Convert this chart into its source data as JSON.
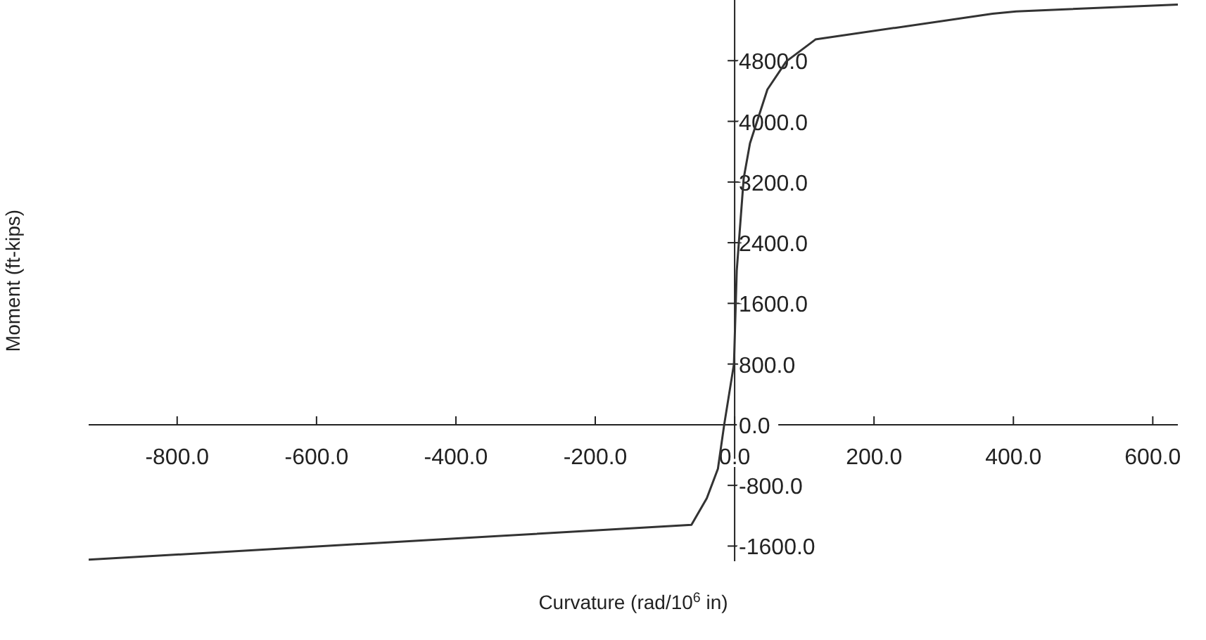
{
  "chart_data": {
    "type": "line",
    "xlabel": "Curvature (rad/10$^{6}$ in)",
    "ylabel": "Moment (ft-kips)",
    "x": [
      -927,
      -62,
      -40,
      -24,
      -15,
      -1,
      3,
      13,
      22,
      47,
      74,
      116,
      370,
      404,
      636
    ],
    "series": [
      {
        "color": "#333333",
        "values": [
          -1780,
          -1320,
          -970,
          -580,
          0,
          800,
          2030,
          3250,
          3710,
          4420,
          4790,
          5080,
          5420,
          5450,
          5540
        ]
      }
    ],
    "xlim": [
      -927,
      636
    ],
    "ylim": [
      -1800,
      5600
    ],
    "xticks": [
      {
        "value": -800,
        "label": "-800.0"
      },
      {
        "value": -600,
        "label": "-600.0"
      },
      {
        "value": -400,
        "label": "-400.0"
      },
      {
        "value": -200,
        "label": "-200.0"
      },
      {
        "value": 0,
        "label": "0.0"
      },
      {
        "value": 200,
        "label": "200.0"
      },
      {
        "value": 400,
        "label": "400.0"
      },
      {
        "value": 600,
        "label": "600.0"
      }
    ],
    "yticks": [
      {
        "value": -1600,
        "label": "-1600.0"
      },
      {
        "value": -800,
        "label": "-800.0"
      },
      {
        "value": 0,
        "label": "0.0"
      },
      {
        "value": 800,
        "label": "800.0"
      },
      {
        "value": 1600,
        "label": "1600.0"
      },
      {
        "value": 2400,
        "label": "2400.0"
      },
      {
        "value": 3200,
        "label": "3200.0"
      },
      {
        "value": 4000,
        "label": "4000.0"
      },
      {
        "value": 4800,
        "label": "4800.0"
      }
    ],
    "grid": false,
    "legend": false,
    "marker": "none",
    "line_style": "solid"
  }
}
